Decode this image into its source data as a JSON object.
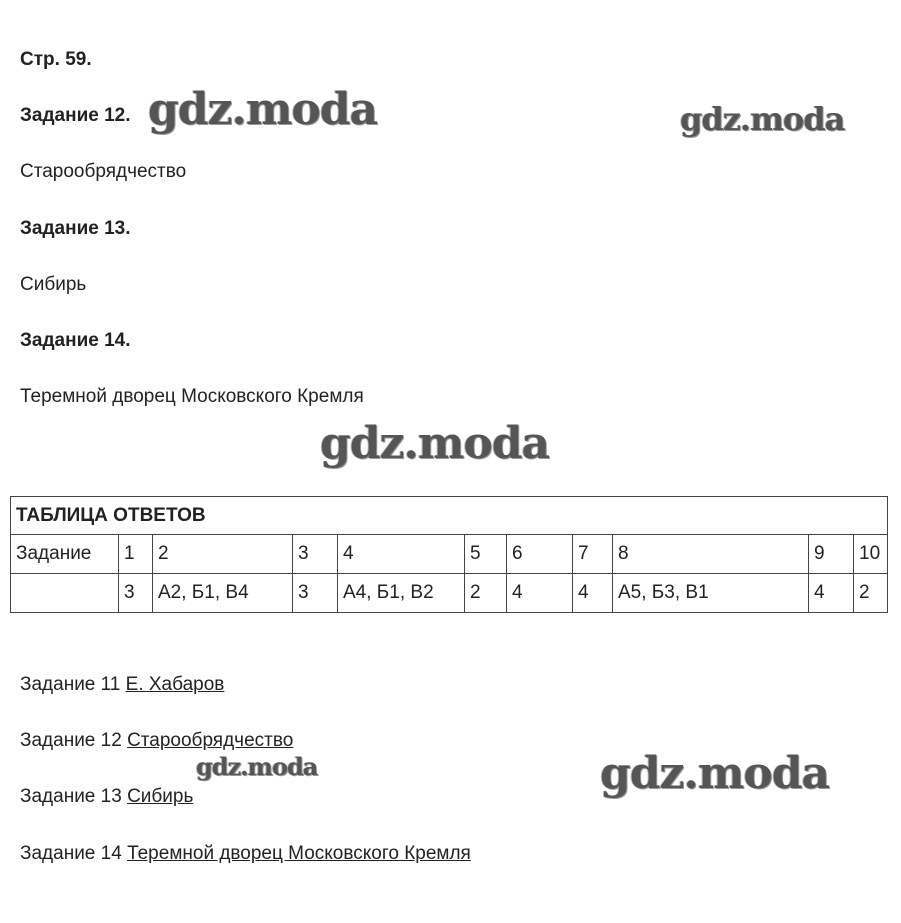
{
  "page": "Стр. 59.",
  "tasks": [
    {
      "heading": "Задание 12.",
      "answer": "Старообрядчество"
    },
    {
      "heading": "Задание 13.",
      "answer": "Сибирь"
    },
    {
      "heading": "Задание 14.",
      "answer": "Теремной дворец Московского Кремля"
    }
  ],
  "watermark": "gdz.moda",
  "table": {
    "title": "ТАБЛИЦА ОТВЕТОВ",
    "header": [
      "Задание",
      "1",
      "2",
      "3",
      "4",
      "5",
      "6",
      "7",
      "8",
      "9",
      "10"
    ],
    "answers": [
      "",
      "3",
      "А2, Б1, В4",
      "3",
      "А4, Б1, В2",
      "2",
      "4",
      "4",
      "А5, Б3, В1",
      "4",
      "2"
    ]
  },
  "summary": [
    {
      "label": "Задание 11",
      "answer": "Е. Хабаров"
    },
    {
      "label": "Задание 12",
      "answer": "Старообрядчество"
    },
    {
      "label": "Задание 13",
      "answer": "Сибирь"
    },
    {
      "label": "Задание 14",
      "answer": "Теремной дворец Московского Кремля"
    }
  ]
}
